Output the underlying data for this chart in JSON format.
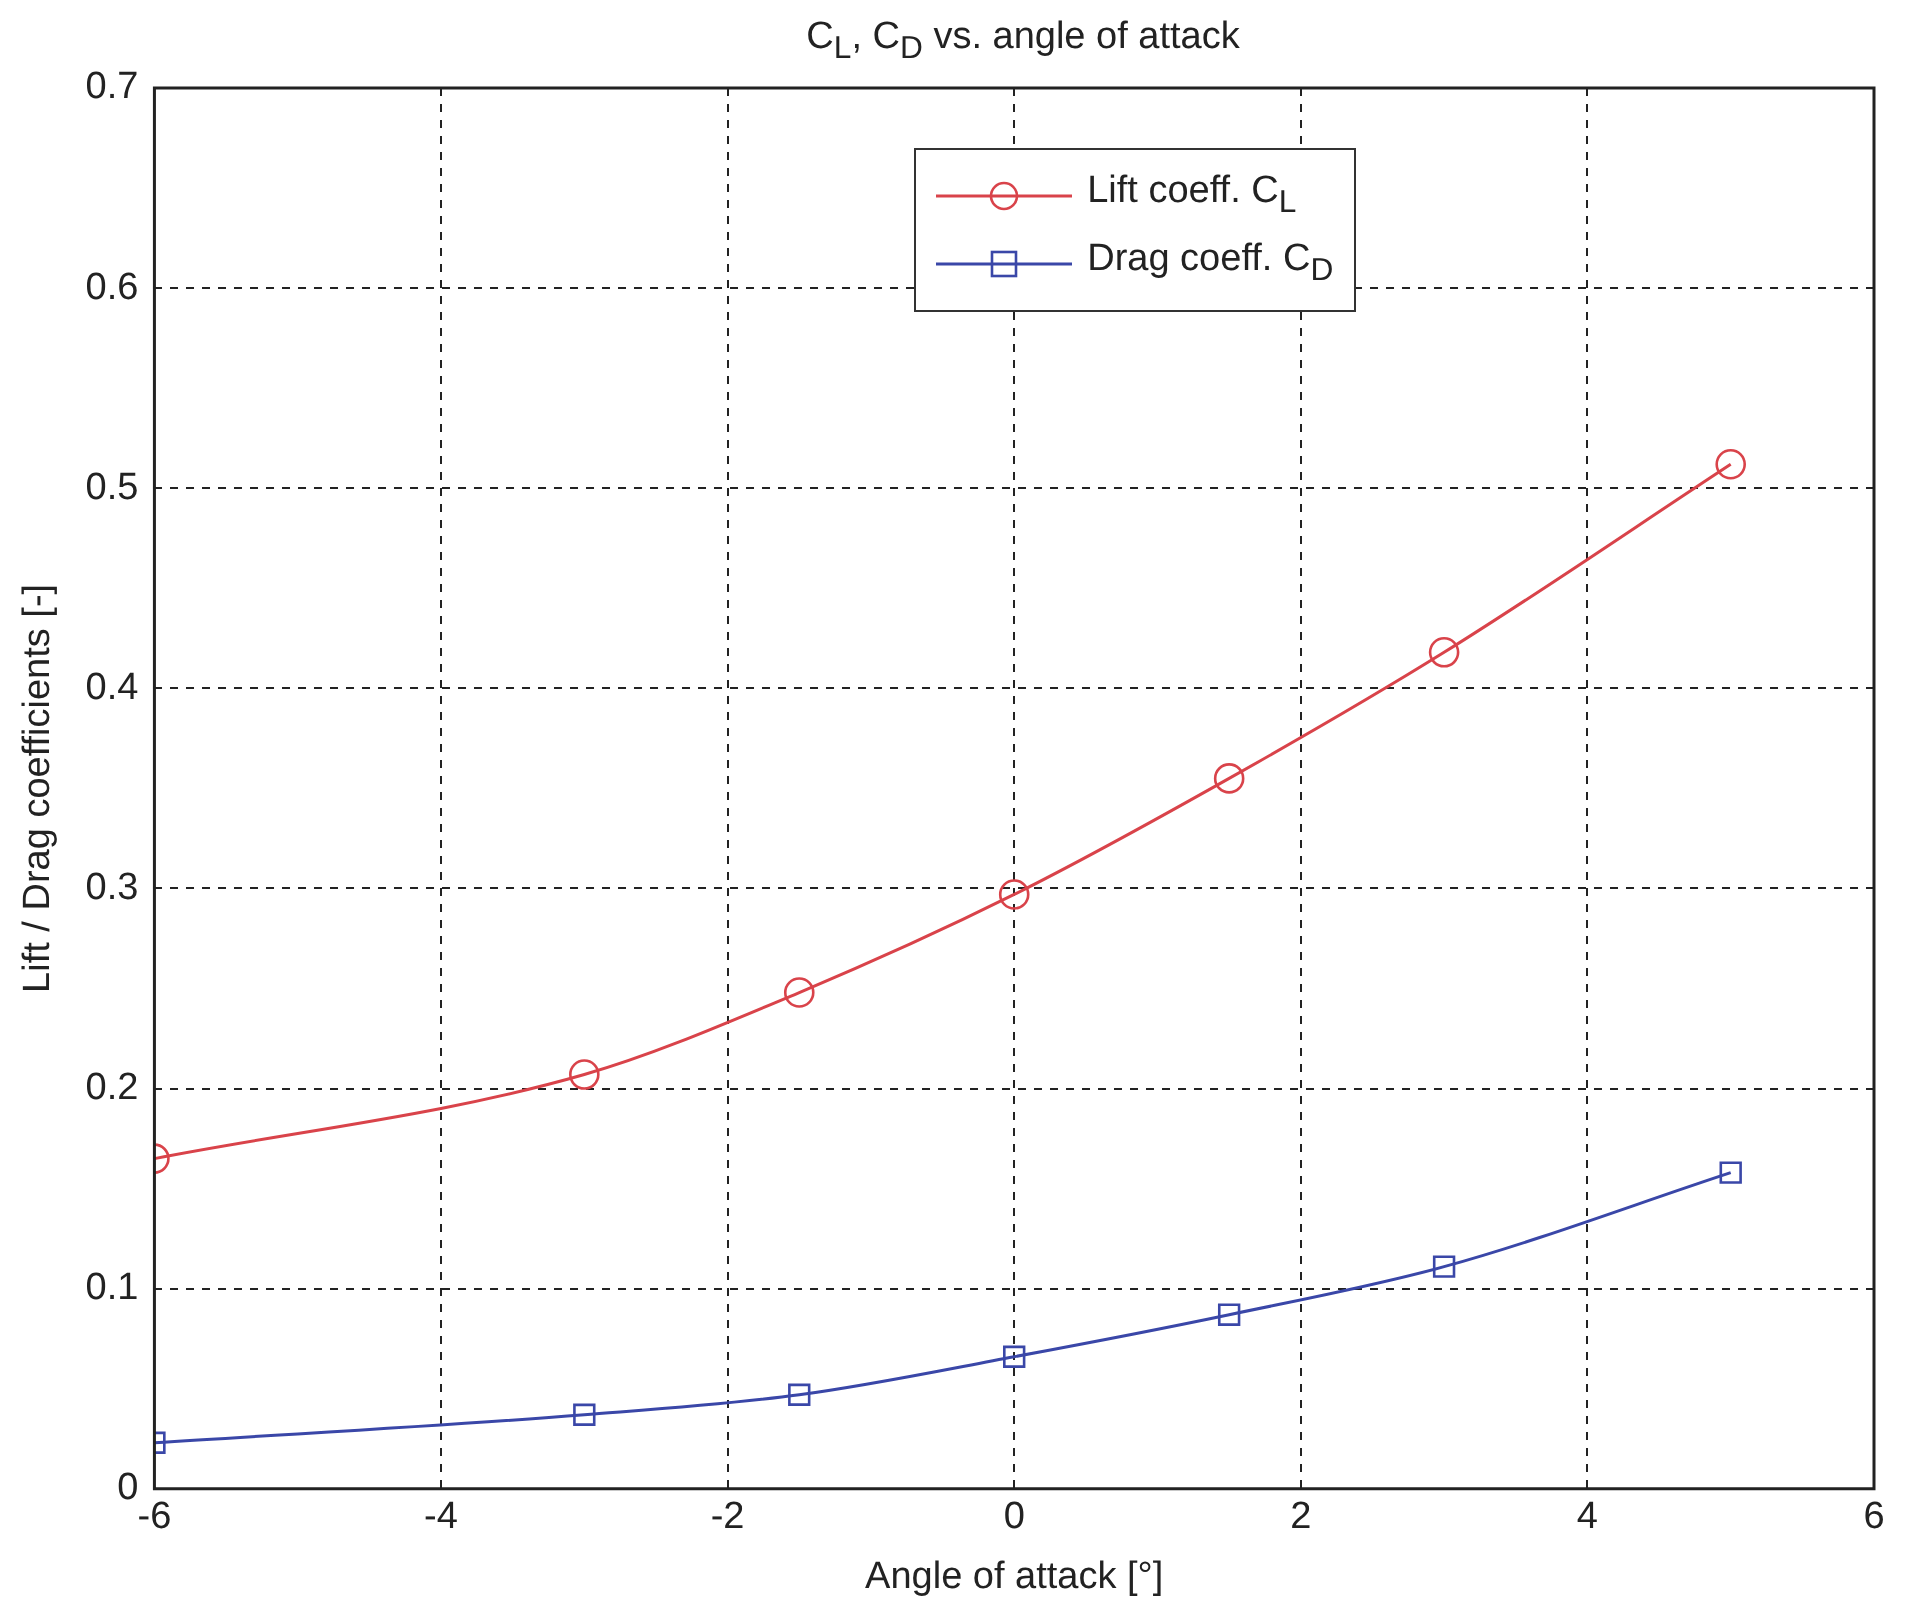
{
  "chart_data": {
    "type": "line",
    "title": "C$_{L}$, C$_{D}$ vs. angle of attack",
    "xlabel": "Angle of attack [°]",
    "ylabel": "Lift / Drag coefficients [-]",
    "xlim": [
      -6,
      6
    ],
    "xticks": [
      -6,
      -4,
      -2,
      0,
      2,
      4,
      6
    ],
    "ylim": [
      0,
      0.7
    ],
    "yticks": [
      0,
      0.1,
      0.2,
      0.3,
      0.4,
      0.5,
      0.6,
      0.7
    ],
    "grid": true,
    "legend": "top",
    "line_style": "solid",
    "series": [
      {
        "name": "Lift coeff. C$_{L}$",
        "color": "#d9434a",
        "marker": "circle",
        "x": [
          -6,
          -3,
          -1.5,
          0,
          1.5,
          3,
          5
        ],
        "values": [
          0.165,
          0.207,
          0.248,
          0.297,
          0.355,
          0.418,
          0.512
        ]
      },
      {
        "name": "Drag coeff. C$_{D}$",
        "color": "#3a47a8",
        "marker": "square",
        "x": [
          -6,
          -3,
          -1.5,
          0,
          1.5,
          3,
          5
        ],
        "values": [
          0.023,
          0.037,
          0.047,
          0.066,
          0.087,
          0.111,
          0.158
        ]
      }
    ]
  }
}
